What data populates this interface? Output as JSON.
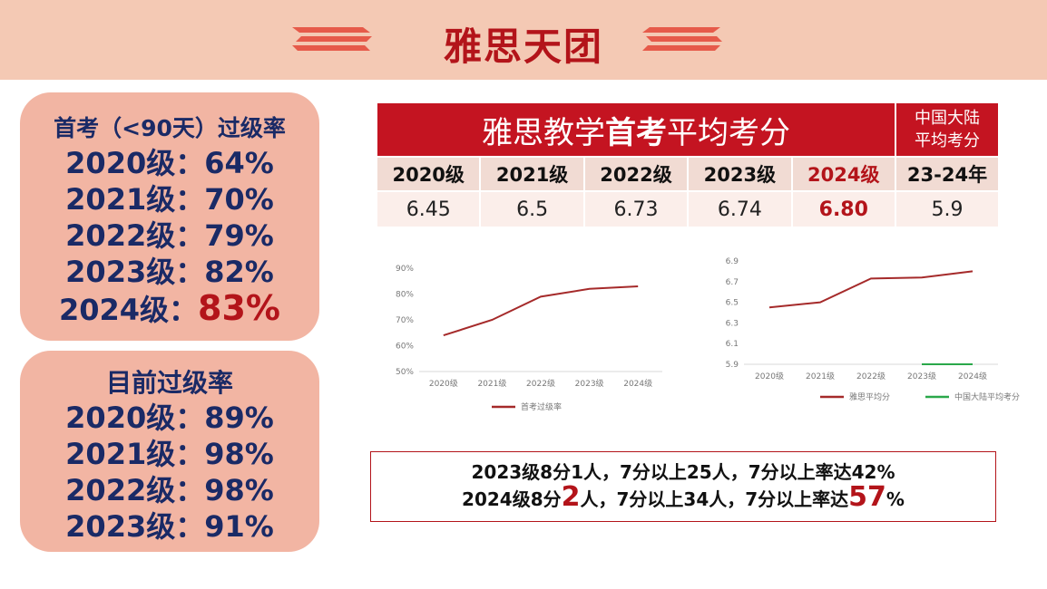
{
  "header": {
    "title": "雅思天团"
  },
  "first_exam_card": {
    "title": "首考（<90天）过级率",
    "rows": [
      {
        "label": "2020级：",
        "value": "64%"
      },
      {
        "label": "2021级：",
        "value": "70%"
      },
      {
        "label": "2022级：",
        "value": "79%"
      },
      {
        "label": "2023级：",
        "value": "82%"
      },
      {
        "label": "2024级：",
        "value": "83%"
      }
    ]
  },
  "current_card": {
    "title": "目前过级率",
    "rows": [
      {
        "label": "2020级：",
        "value": "89%"
      },
      {
        "label": "2021级：",
        "value": "98%"
      },
      {
        "label": "2022级：",
        "value": "98%"
      },
      {
        "label": "2023级：",
        "value": "91%"
      }
    ]
  },
  "score_table": {
    "banner_prefix": "雅思教学",
    "banner_bold": "首考",
    "banner_suffix": "平均考分",
    "side_line1": "中国大陆",
    "side_line2": "平均考分",
    "years": [
      "2020级",
      "2021级",
      "2022级",
      "2023级",
      "2024级",
      "23-24年"
    ],
    "values": [
      "6.45",
      "6.5",
      "6.73",
      "6.74",
      "6.80",
      "5.9"
    ]
  },
  "chart_data": [
    {
      "type": "line",
      "categories": [
        "2020级",
        "2021级",
        "2022级",
        "2023级",
        "2024级"
      ],
      "series": [
        {
          "name": "首考过级率",
          "values": [
            64,
            70,
            79,
            82,
            83
          ],
          "color": "#a52a2a"
        }
      ],
      "yticks": [
        "50%",
        "60%",
        "70%",
        "80%",
        "90%"
      ],
      "ylim": [
        50,
        90
      ],
      "legend": "bottom"
    },
    {
      "type": "line",
      "categories": [
        "2020级",
        "2021级",
        "2022级",
        "2023级",
        "2024级"
      ],
      "series": [
        {
          "name": "雅思平均分",
          "values": [
            6.45,
            6.5,
            6.73,
            6.74,
            6.8
          ],
          "color": "#a52a2a"
        },
        {
          "name": "中国大陆平均考分",
          "values": [
            null,
            null,
            null,
            5.9,
            5.9
          ],
          "color": "#2aa84a"
        }
      ],
      "yticks": [
        "5.9",
        "6.1",
        "6.3",
        "6.5",
        "6.7",
        "6.9"
      ],
      "ylim": [
        5.9,
        6.9
      ],
      "legend": "bottom"
    }
  ],
  "note": {
    "line1": "2023级8分1人，7分以上25人，7分以上率达42%",
    "line2_a": "2024级8分",
    "line2_b": "2",
    "line2_c": "人，7分以上34人，7分以上率达",
    "line2_d": "57",
    "line2_e": "%"
  },
  "colors": {
    "brand_red": "#b3141a",
    "navy": "#1a2a66",
    "peach": "#f2b5a3"
  }
}
